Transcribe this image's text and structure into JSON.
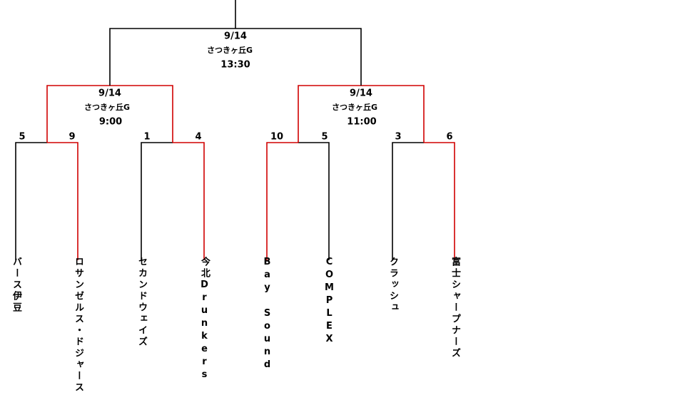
{
  "final": {
    "date": "9/14",
    "venue": "さつきヶ丘G",
    "time": "13:30"
  },
  "semifinals": [
    {
      "date": "9/14",
      "venue": "さつきヶ丘G",
      "time": "9:00"
    },
    {
      "date": "9/14",
      "venue": "さつきヶ丘G",
      "time": "11:00"
    }
  ],
  "first_round": [
    {
      "teams": [
        {
          "name": "バース伊豆",
          "score": 5
        },
        {
          "name": "ロサンゼルス・ドジャース",
          "score": 9
        }
      ]
    },
    {
      "teams": [
        {
          "name": "セカンドウェイズ",
          "score": 1
        },
        {
          "name": "今北Drunkers",
          "score": 4
        }
      ]
    },
    {
      "teams": [
        {
          "name": "Bay Sound",
          "score": 10
        },
        {
          "name": "COMPLEX",
          "score": 5
        }
      ]
    },
    {
      "teams": [
        {
          "name": "クラッシュ",
          "score": 3
        },
        {
          "name": "富士シャープナーズ",
          "score": 6
        }
      ]
    }
  ]
}
